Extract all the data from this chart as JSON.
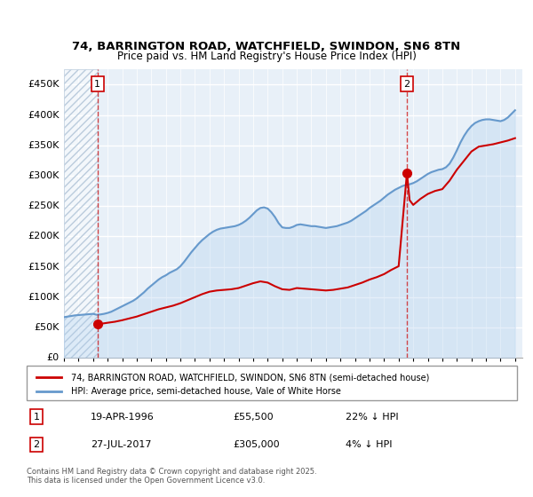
{
  "title_line1": "74, BARRINGTON ROAD, WATCHFIELD, SWINDON, SN6 8TN",
  "title_line2": "Price paid vs. HM Land Registry's House Price Index (HPI)",
  "ylabel": "",
  "background_color": "#ffffff",
  "plot_bg_color": "#e8f0f8",
  "hatch_color": "#c8d8e8",
  "grid_color": "#ffffff",
  "red_line_color": "#cc0000",
  "blue_line_color": "#6699cc",
  "blue_fill_color": "#aaccee",
  "annotation1_date": "19-APR-1996",
  "annotation1_price": "£55,500",
  "annotation1_hpi": "22% ↓ HPI",
  "annotation2_date": "27-JUL-2017",
  "annotation2_price": "£305,000",
  "annotation2_hpi": "4% ↓ HPI",
  "legend_label1": "74, BARRINGTON ROAD, WATCHFIELD, SWINDON, SN6 8TN (semi-detached house)",
  "legend_label2": "HPI: Average price, semi-detached house, Vale of White Horse",
  "footer": "Contains HM Land Registry data © Crown copyright and database right 2025.\nThis data is licensed under the Open Government Licence v3.0.",
  "ylim": [
    0,
    475000
  ],
  "yticks": [
    0,
    50000,
    100000,
    150000,
    200000,
    250000,
    300000,
    350000,
    400000,
    450000
  ],
  "ytick_labels": [
    "£0",
    "£50K",
    "£100K",
    "£150K",
    "£200K",
    "£250K",
    "£300K",
    "£350K",
    "£400K",
    "£450K"
  ],
  "xmin": 1994.0,
  "xmax": 2025.5,
  "xticks": [
    1994,
    1995,
    1996,
    1997,
    1998,
    1999,
    2000,
    2001,
    2002,
    2003,
    2004,
    2005,
    2006,
    2007,
    2008,
    2009,
    2010,
    2011,
    2012,
    2013,
    2014,
    2015,
    2016,
    2017,
    2018,
    2019,
    2020,
    2021,
    2022,
    2023,
    2024,
    2025
  ],
  "purchase1_x": 1996.3,
  "purchase1_y": 55500,
  "purchase2_x": 2017.57,
  "purchase2_y": 305000,
  "vline1_x": 1996.3,
  "vline2_x": 2017.57,
  "hpi_x": [
    1994.0,
    1994.25,
    1994.5,
    1994.75,
    1995.0,
    1995.25,
    1995.5,
    1995.75,
    1996.0,
    1996.25,
    1996.5,
    1996.75,
    1997.0,
    1997.25,
    1997.5,
    1997.75,
    1998.0,
    1998.25,
    1998.5,
    1998.75,
    1999.0,
    1999.25,
    1999.5,
    1999.75,
    2000.0,
    2000.25,
    2000.5,
    2000.75,
    2001.0,
    2001.25,
    2001.5,
    2001.75,
    2002.0,
    2002.25,
    2002.5,
    2002.75,
    2003.0,
    2003.25,
    2003.5,
    2003.75,
    2004.0,
    2004.25,
    2004.5,
    2004.75,
    2005.0,
    2005.25,
    2005.5,
    2005.75,
    2006.0,
    2006.25,
    2006.5,
    2006.75,
    2007.0,
    2007.25,
    2007.5,
    2007.75,
    2008.0,
    2008.25,
    2008.5,
    2008.75,
    2009.0,
    2009.25,
    2009.5,
    2009.75,
    2010.0,
    2010.25,
    2010.5,
    2010.75,
    2011.0,
    2011.25,
    2011.5,
    2011.75,
    2012.0,
    2012.25,
    2012.5,
    2012.75,
    2013.0,
    2013.25,
    2013.5,
    2013.75,
    2014.0,
    2014.25,
    2014.5,
    2014.75,
    2015.0,
    2015.25,
    2015.5,
    2015.75,
    2016.0,
    2016.25,
    2016.5,
    2016.75,
    2017.0,
    2017.25,
    2017.5,
    2017.75,
    2018.0,
    2018.25,
    2018.5,
    2018.75,
    2019.0,
    2019.25,
    2019.5,
    2019.75,
    2020.0,
    2020.25,
    2020.5,
    2020.75,
    2021.0,
    2021.25,
    2021.5,
    2021.75,
    2022.0,
    2022.25,
    2022.5,
    2022.75,
    2023.0,
    2023.25,
    2023.5,
    2023.75,
    2024.0,
    2024.25,
    2024.5,
    2024.75,
    2025.0
  ],
  "hpi_y": [
    67000,
    68000,
    69000,
    70000,
    70500,
    71000,
    71500,
    72000,
    72500,
    71000,
    71500,
    72500,
    74000,
    76000,
    79000,
    82000,
    85000,
    88000,
    91000,
    94000,
    98000,
    103000,
    108000,
    114000,
    119000,
    124000,
    129000,
    133000,
    136000,
    140000,
    143000,
    146000,
    151000,
    158000,
    166000,
    174000,
    181000,
    188000,
    194000,
    199000,
    204000,
    208000,
    211000,
    213000,
    214000,
    215000,
    216000,
    217000,
    219000,
    222000,
    226000,
    231000,
    237000,
    243000,
    247000,
    248000,
    246000,
    240000,
    232000,
    222000,
    215000,
    214000,
    214000,
    216000,
    219000,
    220000,
    219000,
    218000,
    217000,
    217000,
    216000,
    215000,
    214000,
    215000,
    216000,
    217000,
    219000,
    221000,
    223000,
    226000,
    230000,
    234000,
    238000,
    242000,
    247000,
    251000,
    255000,
    259000,
    264000,
    269000,
    273000,
    277000,
    280000,
    283000,
    285000,
    286000,
    288000,
    291000,
    295000,
    299000,
    303000,
    306000,
    308000,
    310000,
    311000,
    314000,
    320000,
    330000,
    342000,
    355000,
    366000,
    375000,
    382000,
    387000,
    390000,
    392000,
    393000,
    393000,
    392000,
    391000,
    390000,
    392000,
    396000,
    402000,
    408000
  ],
  "red_x": [
    1996.3,
    1996.5,
    1997.0,
    1997.5,
    1998.0,
    1998.5,
    1999.0,
    1999.5,
    2000.0,
    2000.5,
    2001.0,
    2001.5,
    2002.0,
    2002.5,
    2003.0,
    2003.5,
    2004.0,
    2004.5,
    2005.0,
    2005.5,
    2006.0,
    2006.5,
    2007.0,
    2007.5,
    2008.0,
    2008.5,
    2009.0,
    2009.5,
    2010.0,
    2010.5,
    2011.0,
    2011.5,
    2012.0,
    2012.5,
    2013.0,
    2013.5,
    2014.0,
    2014.5,
    2015.0,
    2015.5,
    2016.0,
    2016.5,
    2017.0,
    2017.57,
    2017.75,
    2018.0,
    2018.5,
    2019.0,
    2019.5,
    2020.0,
    2020.5,
    2021.0,
    2021.5,
    2022.0,
    2022.5,
    2023.0,
    2023.5,
    2024.0,
    2024.5,
    2025.0
  ],
  "red_y": [
    55500,
    56000,
    57800,
    59500,
    62000,
    65000,
    68000,
    72000,
    76000,
    80000,
    83000,
    86000,
    90000,
    95000,
    100000,
    105000,
    109000,
    111000,
    112000,
    113000,
    115000,
    119000,
    123000,
    126000,
    124000,
    118000,
    113000,
    112000,
    115000,
    114000,
    113000,
    112000,
    111000,
    112000,
    114000,
    116000,
    120000,
    124000,
    129000,
    133000,
    138000,
    145000,
    151000,
    305000,
    260000,
    252000,
    262000,
    270000,
    275000,
    278000,
    292000,
    310000,
    325000,
    340000,
    348000,
    350000,
    352000,
    355000,
    358000,
    362000
  ]
}
